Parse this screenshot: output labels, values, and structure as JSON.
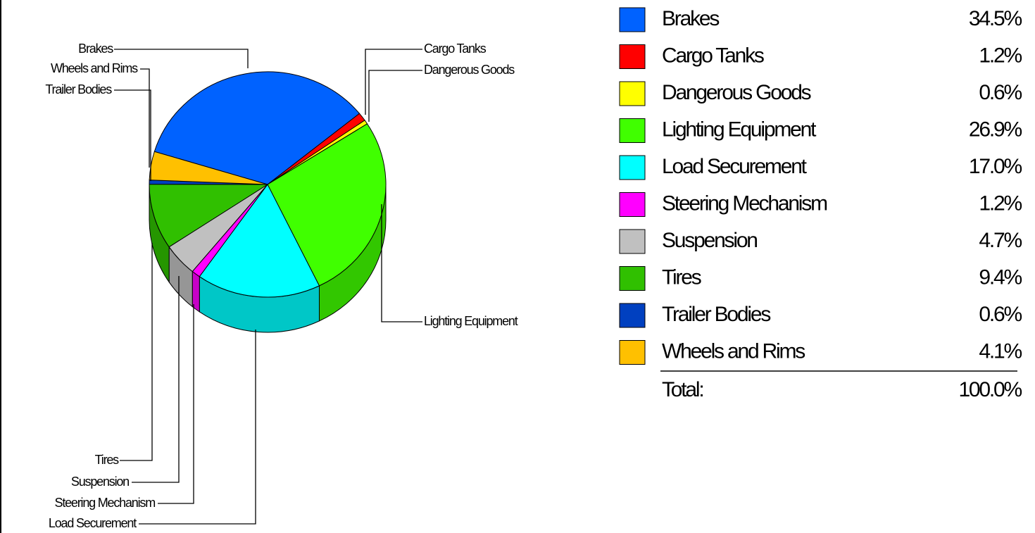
{
  "chart_data": {
    "type": "pie",
    "categories": [
      "Brakes",
      "Cargo Tanks",
      "Dangerous Goods",
      "Lighting Equipment",
      "Load Securement",
      "Steering Mechanism",
      "Suspension",
      "Tires",
      "Trailer Bodies",
      "Wheels and Rims"
    ],
    "values": [
      34.5,
      1.2,
      0.6,
      26.9,
      17.0,
      1.2,
      4.7,
      9.4,
      0.6,
      4.1
    ],
    "value_labels": [
      "34.5%",
      "1.2%",
      "0.6%",
      "26.9%",
      "17.0%",
      "1.2%",
      "4.7%",
      "9.4%",
      "0.6%",
      "4.1%"
    ],
    "colors": [
      "#0062ff",
      "#ff0000",
      "#ffff00",
      "#40ff00",
      "#00ffff",
      "#ff00ff",
      "#c0c0c0",
      "#30c000",
      "#0040c0",
      "#ffc000"
    ],
    "total_label": "Total:",
    "total_value_label": "100.0%"
  }
}
